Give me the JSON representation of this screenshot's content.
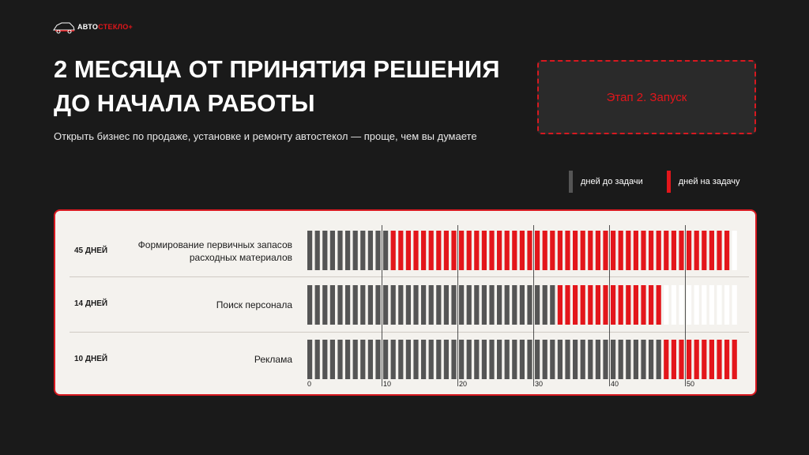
{
  "logo": {
    "text_white": "АВТО",
    "text_red": "СТЕКЛО+"
  },
  "title": "2 МЕСЯЦА ОТ ПРИНЯТИЯ РЕШЕНИЯ ДО НАЧАЛА РАБОТЫ",
  "subtitle": "Открыть бизнес по продаже, установке и ремонту автостекол — проще, чем вы думаете",
  "stage": "Этап 2. Запуск",
  "legend": [
    {
      "label": "дней до задачи",
      "color": "#555555"
    },
    {
      "label": "дней на задачу",
      "color": "#e3161b"
    }
  ],
  "rows": [
    {
      "days": "45 ДНЕЙ",
      "task": "Формирование первичных запасов расходных материалов"
    },
    {
      "days": "14 ДНЕЙ",
      "task": "Поиск персонала"
    },
    {
      "days": "10 ДНЕЙ",
      "task": "Реклама"
    }
  ],
  "chart_data": {
    "type": "bar",
    "categories": [
      "Формирование первичных запасов расходных материалов",
      "Поиск персонала",
      "Реклама"
    ],
    "series": [
      {
        "name": "дней до задачи",
        "values": [
          11,
          33,
          47
        ]
      },
      {
        "name": "дней на задачу",
        "values": [
          45,
          14,
          10
        ]
      }
    ],
    "xlim": [
      0,
      57
    ],
    "xticks": [
      0,
      10,
      20,
      30,
      40,
      50
    ],
    "colors": {
      "before": "#555555",
      "task": "#e3161b",
      "after": "#ffffff"
    }
  }
}
